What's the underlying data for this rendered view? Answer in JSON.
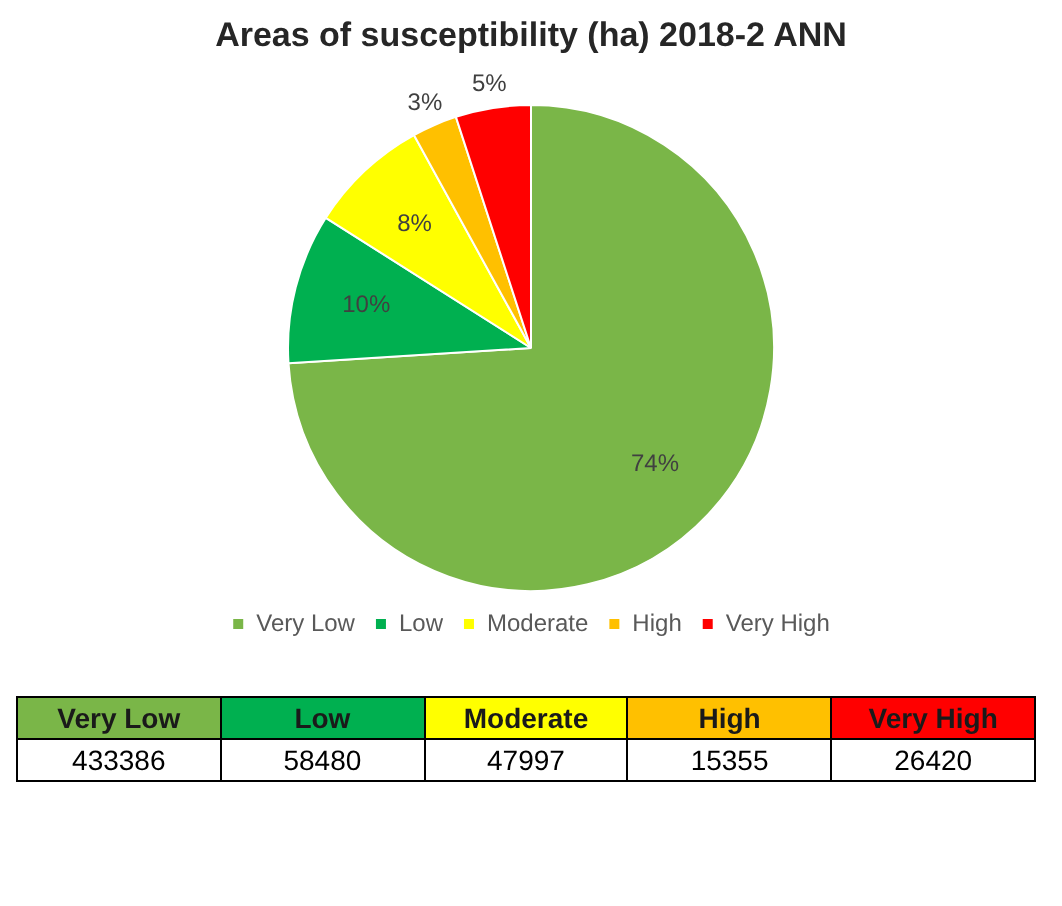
{
  "chart_data": {
    "type": "pie",
    "title": "Areas of susceptibility (ha) 2018-2 ANN",
    "categories": [
      "Very Low",
      "Low",
      "Moderate",
      "High",
      "Very High"
    ],
    "values": [
      74,
      10,
      8,
      3,
      5
    ],
    "colors": [
      "#7ab648",
      "#00b050",
      "#ffff00",
      "#ffc000",
      "#ff0000"
    ],
    "value_labels": [
      "74%",
      "10%",
      "8%",
      "3%",
      "5%"
    ],
    "annotations": [
      "433386",
      "58480",
      "47997",
      "15355",
      "26420"
    ],
    "legend": "bottom"
  }
}
